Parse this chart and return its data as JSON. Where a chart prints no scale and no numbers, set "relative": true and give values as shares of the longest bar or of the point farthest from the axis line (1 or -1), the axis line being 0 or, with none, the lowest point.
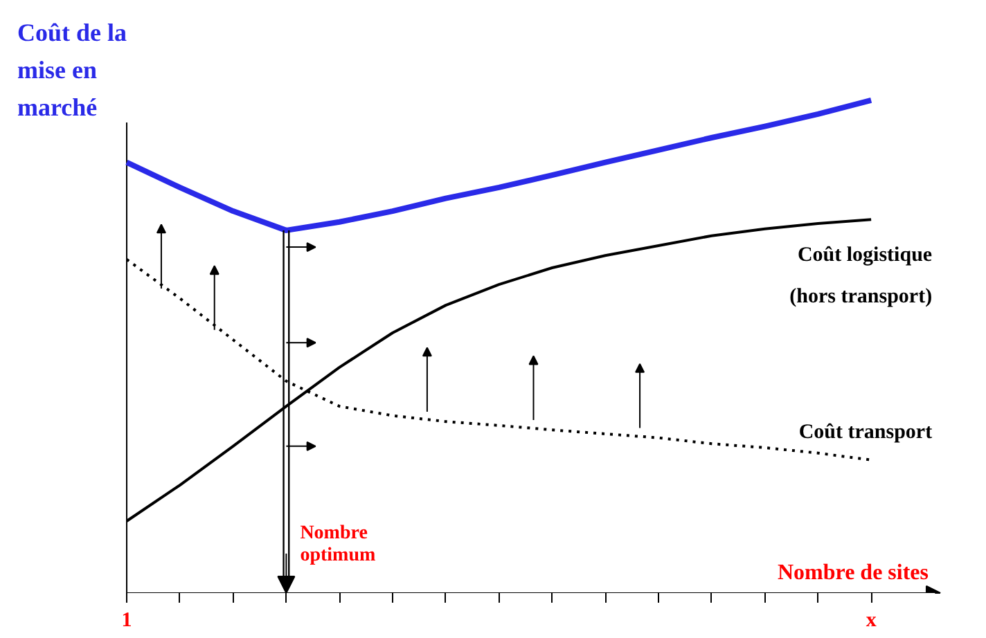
{
  "chart_data": {
    "type": "line",
    "relative": true,
    "ylabel": "Coût de la mise en marché",
    "xlabel": "Nombre de sites",
    "categories": [
      "1",
      null,
      null,
      null,
      null,
      null,
      null,
      null,
      null,
      null,
      null,
      null,
      null,
      null,
      "x"
    ],
    "series": [
      {
        "color": "#2a2ae8",
        "values": [
          0.874,
          0.823,
          0.775,
          0.736,
          0.753,
          0.775,
          0.801,
          0.823,
          0.848,
          0.874,
          0.899,
          0.924,
          0.947,
          0.972,
          1.0
        ]
      },
      {
        "name": "Coût logistique (hors transport)",
        "color": "#000000",
        "values": [
          0.146,
          0.219,
          0.298,
          0.379,
          0.458,
          0.528,
          0.584,
          0.626,
          0.66,
          0.685,
          0.705,
          0.725,
          0.739,
          0.75,
          0.758
        ]
      },
      {
        "name": "Coût transport",
        "color": "#000000",
        "line_style": "dotted",
        "values": [
          0.677,
          0.598,
          0.514,
          0.43,
          0.379,
          0.36,
          0.348,
          0.34,
          0.331,
          0.323,
          0.315,
          0.303,
          0.295,
          0.284,
          0.27
        ]
      }
    ],
    "annotations": [
      "Nombre optimum"
    ]
  }
}
